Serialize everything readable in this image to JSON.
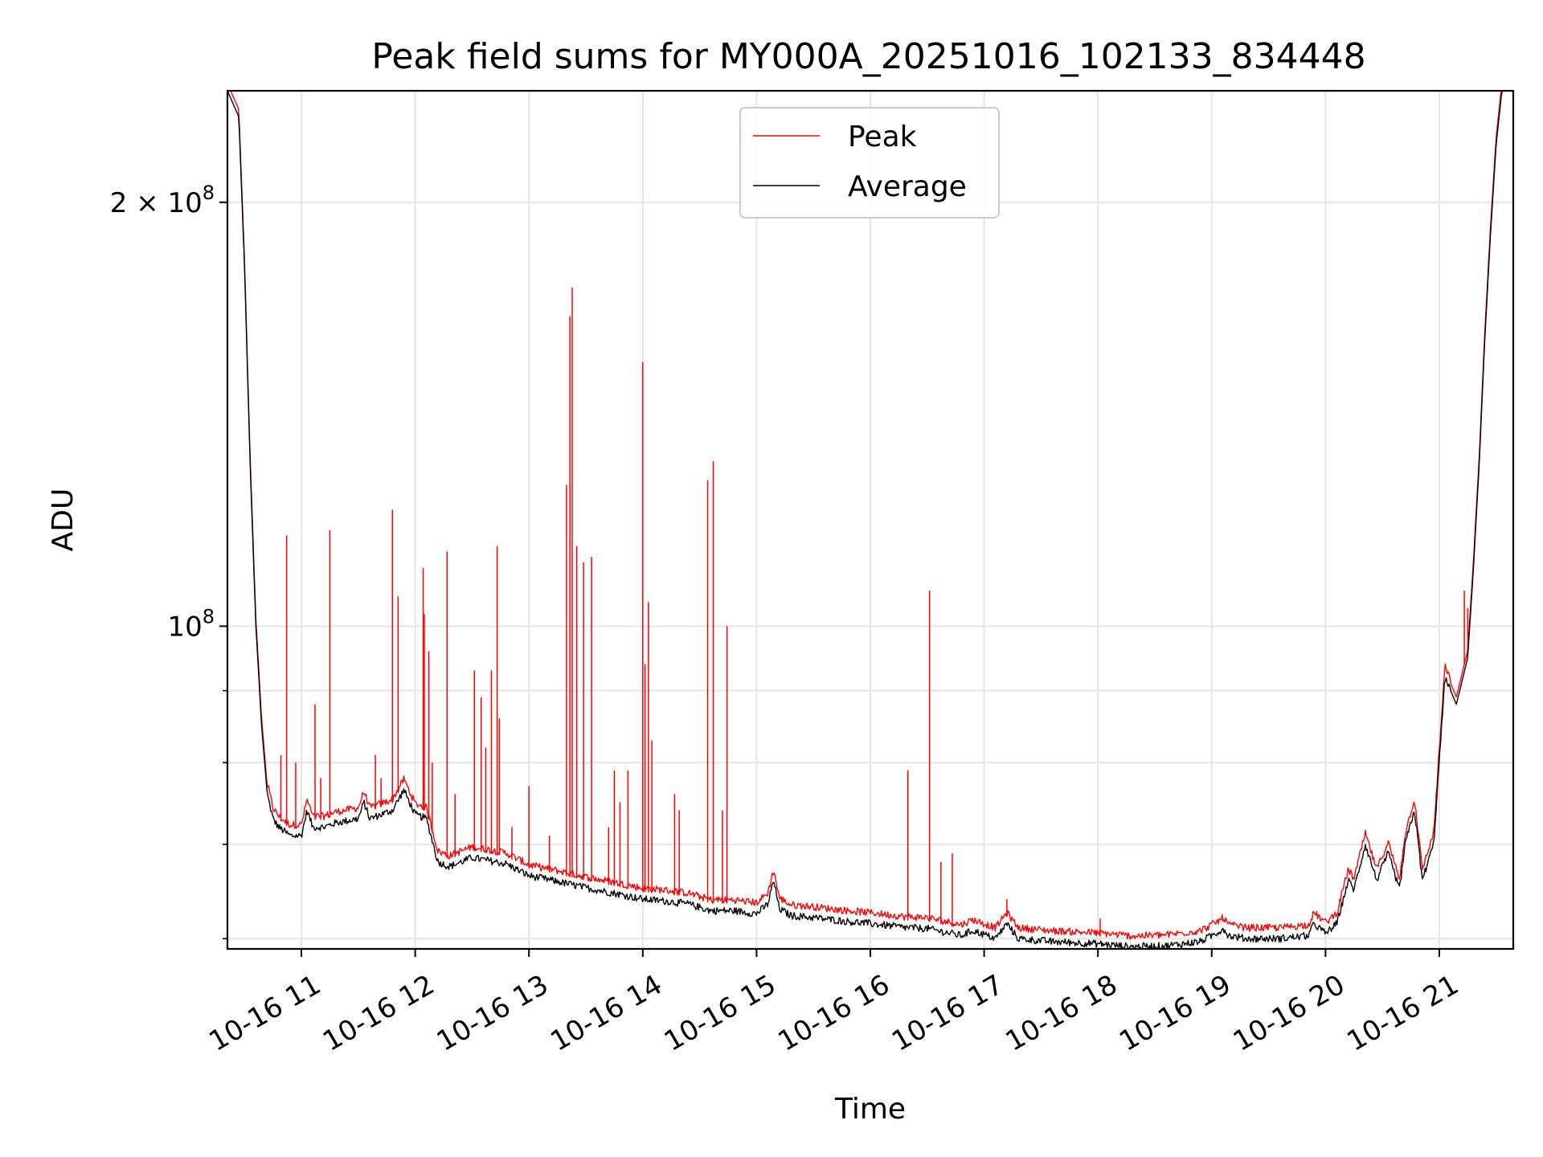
{
  "chart_data": {
    "type": "line",
    "title": "Peak field sums for MY000A_20251016_102133_834448",
    "xlabel": "Time",
    "ylabel": "ADU",
    "yscale": "log",
    "xlim": [
      10.35,
      21.65
    ],
    "ylim": [
      59000000,
      240000000
    ],
    "grid": true,
    "x_ticks": [
      {
        "value": 11,
        "label": "10-16 11"
      },
      {
        "value": 12,
        "label": "10-16 12"
      },
      {
        "value": 13,
        "label": "10-16 13"
      },
      {
        "value": 14,
        "label": "10-16 14"
      },
      {
        "value": 15,
        "label": "10-16 15"
      },
      {
        "value": 16,
        "label": "10-16 16"
      },
      {
        "value": 17,
        "label": "10-16 17"
      },
      {
        "value": 18,
        "label": "10-16 18"
      },
      {
        "value": 19,
        "label": "10-16 19"
      },
      {
        "value": 20,
        "label": "10-16 20"
      },
      {
        "value": 21,
        "label": "10-16 21"
      }
    ],
    "y_major_ticks": [
      {
        "value": 100000000,
        "base": "10",
        "exp": "8",
        "mult": ""
      },
      {
        "value": 200000000,
        "base": "10",
        "exp": "8",
        "mult": "2 × "
      }
    ],
    "y_minor_ticks": [
      60000000,
      70000000,
      80000000,
      90000000
    ],
    "legend": {
      "position": "upper-center",
      "entries": [
        "Peak",
        "Average"
      ]
    },
    "series": [
      {
        "name": "Average",
        "color": "#000000",
        "x": [
          10.35,
          10.45,
          10.5,
          10.55,
          10.6,
          10.65,
          10.7,
          10.75,
          10.8,
          10.9,
          11.0,
          11.05,
          11.1,
          11.2,
          11.3,
          11.5,
          11.55,
          11.6,
          11.8,
          11.9,
          11.95,
          12.0,
          12.1,
          12.2,
          12.3,
          12.5,
          12.8,
          13.0,
          13.2,
          13.5,
          13.8,
          14.0,
          14.2,
          14.4,
          14.6,
          14.8,
          15.0,
          15.1,
          15.15,
          15.2,
          15.3,
          15.5,
          15.8,
          16.0,
          16.3,
          16.5,
          16.8,
          16.9,
          17.1,
          17.2,
          17.3,
          17.6,
          18.0,
          18.3,
          18.6,
          18.9,
          19.05,
          19.1,
          19.15,
          19.3,
          19.6,
          19.85,
          19.9,
          20.0,
          20.1,
          20.2,
          20.25,
          20.35,
          20.45,
          20.55,
          20.65,
          20.7,
          20.78,
          20.8,
          20.85,
          20.95,
          21.05,
          21.15,
          21.25,
          21.3,
          21.35,
          21.4,
          21.45,
          21.5,
          21.55,
          21.65
        ],
        "values": [
          240000000,
          230000000,
          180000000,
          130000000,
          100000000,
          85000000,
          76000000,
          73000000,
          72000000,
          71000000,
          71000000,
          74000000,
          72000000,
          72000000,
          72500000,
          73000000,
          75000000,
          73000000,
          74000000,
          76500000,
          75000000,
          73500000,
          73000000,
          68000000,
          67500000,
          68500000,
          67800000,
          66500000,
          66000000,
          65200000,
          64500000,
          64000000,
          63800000,
          63500000,
          62800000,
          62800000,
          62500000,
          63500000,
          66000000,
          63000000,
          62300000,
          62100000,
          61700000,
          61500000,
          61100000,
          61000000,
          60300000,
          60800000,
          60000000,
          61500000,
          60000000,
          59700000,
          59500000,
          59200000,
          59300000,
          59700000,
          60600000,
          61000000,
          60300000,
          60000000,
          60000000,
          60300000,
          61500000,
          60500000,
          61500000,
          66000000,
          65000000,
          70000000,
          66000000,
          69000000,
          65000000,
          70000000,
          74000000,
          72000000,
          66000000,
          70000000,
          92000000,
          88000000,
          95000000,
          110000000,
          130000000,
          160000000,
          190000000,
          220000000,
          240000000,
          240000000
        ]
      },
      {
        "name": "Peak",
        "color": "#ff0000",
        "baseline_offset": 1.012,
        "spikes": [
          {
            "x": 10.87,
            "y": 116000000
          },
          {
            "x": 10.82,
            "y": 81000000
          },
          {
            "x": 10.95,
            "y": 80000000
          },
          {
            "x": 11.12,
            "y": 88000000
          },
          {
            "x": 11.17,
            "y": 78000000
          },
          {
            "x": 11.25,
            "y": 117000000
          },
          {
            "x": 11.65,
            "y": 81000000
          },
          {
            "x": 11.7,
            "y": 78000000
          },
          {
            "x": 11.8,
            "y": 121000000
          },
          {
            "x": 11.85,
            "y": 105000000
          },
          {
            "x": 12.07,
            "y": 110000000
          },
          {
            "x": 12.08,
            "y": 102000000
          },
          {
            "x": 12.12,
            "y": 96000000
          },
          {
            "x": 12.15,
            "y": 80000000
          },
          {
            "x": 12.28,
            "y": 113000000
          },
          {
            "x": 12.35,
            "y": 76000000
          },
          {
            "x": 12.52,
            "y": 93000000
          },
          {
            "x": 12.58,
            "y": 89000000
          },
          {
            "x": 12.62,
            "y": 82000000
          },
          {
            "x": 12.67,
            "y": 93000000
          },
          {
            "x": 12.72,
            "y": 114000000
          },
          {
            "x": 12.74,
            "y": 86000000
          },
          {
            "x": 12.85,
            "y": 72000000
          },
          {
            "x": 13.0,
            "y": 77000000
          },
          {
            "x": 13.18,
            "y": 71000000
          },
          {
            "x": 13.33,
            "y": 126000000
          },
          {
            "x": 13.36,
            "y": 166000000
          },
          {
            "x": 13.38,
            "y": 174000000
          },
          {
            "x": 13.42,
            "y": 114000000
          },
          {
            "x": 13.48,
            "y": 111000000
          },
          {
            "x": 13.55,
            "y": 112000000
          },
          {
            "x": 13.7,
            "y": 72000000
          },
          {
            "x": 13.75,
            "y": 79000000
          },
          {
            "x": 13.8,
            "y": 75000000
          },
          {
            "x": 13.87,
            "y": 79000000
          },
          {
            "x": 14.0,
            "y": 154000000
          },
          {
            "x": 14.02,
            "y": 94000000
          },
          {
            "x": 14.05,
            "y": 104000000
          },
          {
            "x": 14.08,
            "y": 83000000
          },
          {
            "x": 14.28,
            "y": 76000000
          },
          {
            "x": 14.32,
            "y": 74000000
          },
          {
            "x": 14.57,
            "y": 127000000
          },
          {
            "x": 14.62,
            "y": 131000000
          },
          {
            "x": 14.7,
            "y": 74000000
          },
          {
            "x": 14.74,
            "y": 100000000
          },
          {
            "x": 16.33,
            "y": 79000000
          },
          {
            "x": 16.52,
            "y": 106000000
          },
          {
            "x": 16.62,
            "y": 68000000
          },
          {
            "x": 16.72,
            "y": 69000000
          },
          {
            "x": 17.2,
            "y": 64000000
          },
          {
            "x": 18.02,
            "y": 62000000
          },
          {
            "x": 21.22,
            "y": 106000000
          },
          {
            "x": 21.25,
            "y": 103000000
          }
        ]
      }
    ]
  }
}
